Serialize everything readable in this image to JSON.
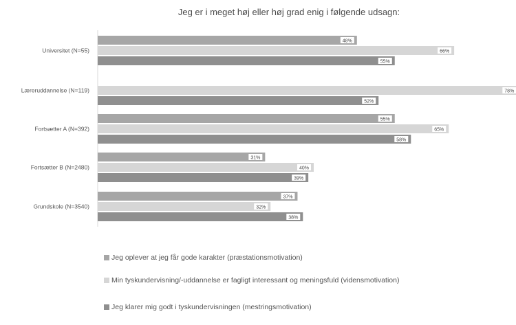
{
  "chart_data": {
    "type": "bar",
    "orientation": "horizontal",
    "title": "Jeg er i meget høj eller høj grad enig i følgende udsagn:",
    "xlabel": "",
    "ylabel": "",
    "xlim": [
      0,
      80
    ],
    "grid": false,
    "legend_position": "bottom",
    "categories": [
      "Universitet (N=55)",
      "Læreruddannelse (N=119)",
      "Fortsætter A (N=392)",
      "Fortsætter B (N=2480)",
      "Grundskole (N=3540)"
    ],
    "series": [
      {
        "name": "Jeg oplever at jeg får gode karakter (præstationsmotivation)",
        "color": "#a6a6a6",
        "values": [
          48,
          null,
          55,
          31,
          37
        ],
        "labels": [
          "48%",
          "",
          "55%",
          "31%",
          "37%"
        ]
      },
      {
        "name": "Min tyskundervisning/-uddannelse er fagligt interessant og meningsfuld (vidensmotivation)",
        "color": "#d6d6d6",
        "values": [
          66,
          78,
          65,
          40,
          32
        ],
        "labels": [
          "66%",
          "78%",
          "65%",
          "40%",
          "32%"
        ]
      },
      {
        "name": "Jeg klarer mig godt i tyskundervisningen (mestringsmotivation)",
        "color": "#8f8f8f",
        "values": [
          55,
          52,
          58,
          39,
          38
        ],
        "labels": [
          "55%",
          "52%",
          "58%",
          "39%",
          "38%"
        ]
      }
    ]
  }
}
